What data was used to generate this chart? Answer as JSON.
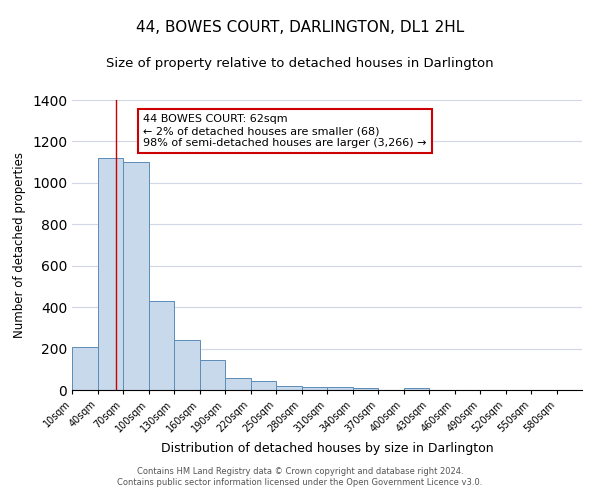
{
  "title": "44, BOWES COURT, DARLINGTON, DL1 2HL",
  "subtitle": "Size of property relative to detached houses in Darlington",
  "xlabel": "Distribution of detached houses by size in Darlington",
  "ylabel": "Number of detached properties",
  "bar_edges": [
    10,
    40,
    70,
    100,
    130,
    160,
    190,
    220,
    250,
    280,
    310,
    340,
    370,
    400,
    430,
    460,
    490,
    520,
    550,
    580,
    610
  ],
  "bar_heights": [
    210,
    1120,
    1100,
    430,
    240,
    145,
    60,
    45,
    20,
    15,
    15,
    10,
    0,
    10,
    0,
    0,
    0,
    0,
    0,
    0
  ],
  "bar_color": "#c9d9ec",
  "bar_edgecolor": "#5b8db8",
  "property_line_x": 62,
  "property_line_color": "#cc0000",
  "ylim": [
    0,
    1400
  ],
  "yticks": [
    0,
    200,
    400,
    600,
    800,
    1000,
    1200,
    1400
  ],
  "annotation_box_text": "44 BOWES COURT: 62sqm\n← 2% of detached houses are smaller (68)\n98% of semi-detached houses are larger (3,266) →",
  "footer_line1": "Contains HM Land Registry data © Crown copyright and database right 2024.",
  "footer_line2": "Contains public sector information licensed under the Open Government Licence v3.0.",
  "background_color": "#ffffff",
  "grid_color": "#d0d8e8",
  "title_fontsize": 11,
  "subtitle_fontsize": 9.5,
  "tick_label_fontsize": 7,
  "ylabel_fontsize": 8.5,
  "xlabel_fontsize": 9,
  "annotation_fontsize": 8,
  "footer_fontsize": 6
}
